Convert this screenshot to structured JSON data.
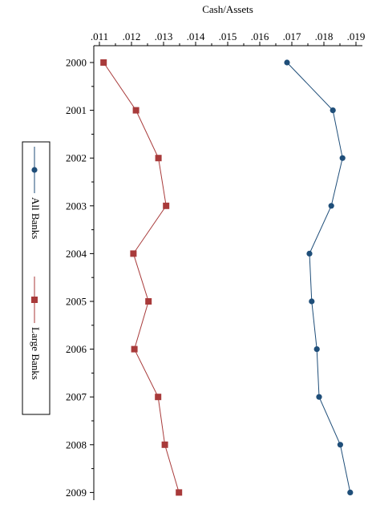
{
  "chart_data": {
    "type": "line",
    "orientation": "horizontal",
    "xlabel": "Cash/Assets",
    "x_ticks": [
      0.011,
      0.012,
      0.013,
      0.014,
      0.015,
      0.016,
      0.017,
      0.018,
      0.019
    ],
    "x_tick_labels": [
      ".011",
      ".012",
      ".013",
      ".014",
      ".015",
      ".016",
      ".017",
      ".018",
      ".019"
    ],
    "x_axis_position": "top",
    "categories": [
      "2000",
      "2001",
      "2002",
      "2003",
      "2004",
      "2005",
      "2006",
      "2007",
      "2008",
      "2009"
    ],
    "xlim": [
      0.011,
      0.019
    ],
    "grid": false,
    "legend_position": "left",
    "legend_orientation": "rotated-vertical",
    "series": [
      {
        "name": "All Banks",
        "color": "#1f4e79",
        "marker": "circle",
        "values": [
          0.01685,
          0.01828,
          0.01858,
          0.01823,
          0.01755,
          0.01762,
          0.01778,
          0.01785,
          0.01851,
          0.01882
        ]
      },
      {
        "name": "Large Banks",
        "color": "#a83a3a",
        "marker": "square",
        "values": [
          0.01113,
          0.01214,
          0.01284,
          0.01308,
          0.01206,
          0.01253,
          0.01209,
          0.01283,
          0.01304,
          0.01348
        ]
      }
    ]
  }
}
